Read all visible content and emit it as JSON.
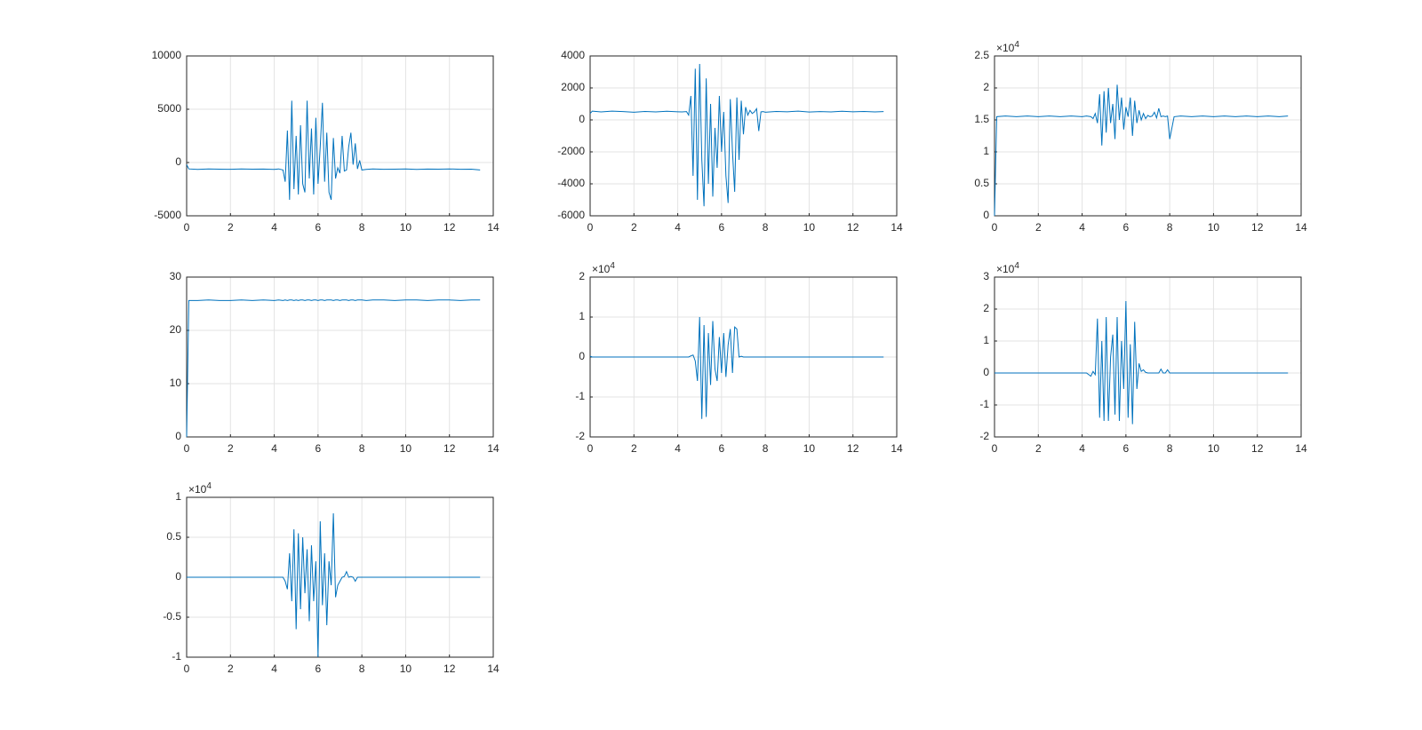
{
  "chart_data": [
    {
      "type": "line",
      "color": "#0072bd",
      "grid": true,
      "x": [
        0,
        0.1,
        0.5,
        1,
        1.5,
        2,
        2.5,
        3,
        3.5,
        4,
        4.2,
        4.4,
        4.5,
        4.6,
        4.7,
        4.8,
        4.9,
        5,
        5.1,
        5.2,
        5.3,
        5.4,
        5.5,
        5.6,
        5.7,
        5.8,
        5.9,
        6,
        6.1,
        6.2,
        6.3,
        6.4,
        6.5,
        6.6,
        6.7,
        6.8,
        6.9,
        7,
        7.1,
        7.2,
        7.3,
        7.4,
        7.5,
        7.6,
        7.7,
        7.8,
        7.9,
        8,
        8.2,
        8.5,
        9,
        9.5,
        10,
        10.5,
        11,
        11.5,
        12,
        12.5,
        13,
        13.4
      ],
      "values": [
        -200,
        -600,
        -650,
        -600,
        -620,
        -640,
        -600,
        -630,
        -610,
        -650,
        -600,
        -700,
        -1800,
        3000,
        -3500,
        5800,
        -2500,
        2500,
        -3000,
        3500,
        -2000,
        -2800,
        5800,
        -1500,
        3200,
        -3000,
        4200,
        -2000,
        1500,
        5600,
        -1800,
        2800,
        -2800,
        -3500,
        2300,
        -1500,
        -500,
        -1000,
        2500,
        -800,
        -700,
        1500,
        2800,
        -200,
        1800,
        -600,
        200,
        -700,
        -650,
        -600,
        -640,
        -620,
        -600,
        -650,
        -610,
        -630,
        -600,
        -640,
        -620,
        -700
      ],
      "xlim": [
        0,
        14
      ],
      "xticks": [
        0,
        2,
        4,
        6,
        8,
        10,
        12,
        14
      ],
      "ylim": [
        -5000,
        10000
      ],
      "yticks": [
        -5000,
        0,
        5000,
        10000
      ]
    },
    {
      "type": "line",
      "color": "#0072bd",
      "grid": true,
      "x": [
        0,
        0.1,
        0.5,
        1,
        1.5,
        2,
        2.5,
        3,
        3.5,
        4,
        4.2,
        4.4,
        4.5,
        4.6,
        4.7,
        4.8,
        4.9,
        5,
        5.1,
        5.2,
        5.3,
        5.4,
        5.5,
        5.6,
        5.7,
        5.8,
        5.9,
        6,
        6.1,
        6.2,
        6.3,
        6.4,
        6.5,
        6.6,
        6.7,
        6.8,
        6.9,
        7,
        7.1,
        7.2,
        7.3,
        7.4,
        7.5,
        7.6,
        7.7,
        7.8,
        7.9,
        8,
        8.2,
        8.5,
        9,
        9.5,
        10,
        10.5,
        11,
        11.5,
        12,
        12.5,
        13,
        13.4
      ],
      "values": [
        400,
        550,
        500,
        550,
        520,
        480,
        530,
        500,
        540,
        510,
        500,
        520,
        300,
        1500,
        -3500,
        3200,
        -5000,
        3500,
        -2500,
        -5400,
        2600,
        -4000,
        1000,
        -4800,
        -500,
        -3000,
        1500,
        -2000,
        500,
        -3500,
        -5200,
        1300,
        -2000,
        -4500,
        1400,
        -2500,
        1200,
        -900,
        800,
        300,
        600,
        400,
        500,
        700,
        -700,
        500,
        520,
        480,
        500,
        530,
        510,
        550,
        490,
        520,
        500,
        540,
        510,
        530,
        500,
        520
      ],
      "xlim": [
        0,
        14
      ],
      "xticks": [
        0,
        2,
        4,
        6,
        8,
        10,
        12,
        14
      ],
      "ylim": [
        -6000,
        4000
      ],
      "yticks": [
        -6000,
        -4000,
        -2000,
        0,
        2000,
        4000
      ]
    },
    {
      "type": "line",
      "color": "#0072bd",
      "grid": true,
      "y_multiplier": {
        "base": "×10",
        "power": "4"
      },
      "x": [
        0,
        0.1,
        0.5,
        1,
        1.5,
        2,
        2.5,
        3,
        3.5,
        4,
        4.2,
        4.4,
        4.5,
        4.6,
        4.7,
        4.8,
        4.9,
        5,
        5.1,
        5.2,
        5.3,
        5.4,
        5.5,
        5.6,
        5.7,
        5.8,
        5.9,
        6,
        6.1,
        6.2,
        6.3,
        6.4,
        6.5,
        6.6,
        6.7,
        6.8,
        6.9,
        7,
        7.1,
        7.2,
        7.3,
        7.4,
        7.5,
        7.6,
        7.7,
        7.8,
        7.9,
        8,
        8.2,
        8.5,
        9,
        9.5,
        10,
        10.5,
        11,
        11.5,
        12,
        12.5,
        13,
        13.4
      ],
      "values": [
        0,
        1.55,
        1.56,
        1.55,
        1.56,
        1.55,
        1.56,
        1.55,
        1.56,
        1.55,
        1.56,
        1.55,
        1.52,
        1.6,
        1.45,
        1.9,
        1.1,
        1.95,
        1.3,
        2.0,
        1.45,
        1.75,
        1.2,
        2.05,
        1.5,
        1.85,
        1.35,
        1.7,
        1.55,
        1.85,
        1.25,
        1.8,
        1.45,
        1.65,
        1.5,
        1.6,
        1.52,
        1.57,
        1.55,
        1.56,
        1.62,
        1.53,
        1.68,
        1.55,
        1.56,
        1.55,
        1.56,
        1.2,
        1.55,
        1.56,
        1.55,
        1.56,
        1.55,
        1.56,
        1.55,
        1.56,
        1.55,
        1.56,
        1.55,
        1.56
      ],
      "xlim": [
        0,
        14
      ],
      "xticks": [
        0,
        2,
        4,
        6,
        8,
        10,
        12,
        14
      ],
      "ylim": [
        0,
        2.5
      ],
      "yticks": [
        0,
        0.5,
        1,
        1.5,
        2,
        2.5
      ]
    },
    {
      "type": "line",
      "color": "#0072bd",
      "grid": true,
      "x": [
        0,
        0.1,
        0.5,
        1,
        1.5,
        2,
        2.5,
        3,
        3.5,
        4,
        4.2,
        4.4,
        4.5,
        4.6,
        4.7,
        4.8,
        4.9,
        5,
        5.1,
        5.2,
        5.3,
        5.4,
        5.5,
        5.6,
        5.7,
        5.8,
        5.9,
        6,
        6.1,
        6.2,
        6.3,
        6.4,
        6.5,
        6.6,
        6.7,
        6.8,
        6.9,
        7,
        7.1,
        7.2,
        7.3,
        7.4,
        7.5,
        7.6,
        7.7,
        7.8,
        7.9,
        8,
        8.2,
        8.5,
        9,
        9.5,
        10,
        10.5,
        11,
        11.5,
        12,
        12.5,
        13,
        13.4
      ],
      "values": [
        0,
        25.6,
        25.6,
        25.7,
        25.6,
        25.6,
        25.7,
        25.6,
        25.7,
        25.6,
        25.7,
        25.6,
        25.7,
        25.6,
        25.7,
        25.7,
        25.6,
        25.7,
        25.6,
        25.7,
        25.7,
        25.6,
        25.7,
        25.7,
        25.6,
        25.7,
        25.7,
        25.6,
        25.7,
        25.7,
        25.6,
        25.7,
        25.7,
        25.7,
        25.6,
        25.7,
        25.7,
        25.6,
        25.7,
        25.7,
        25.7,
        25.6,
        25.7,
        25.7,
        25.6,
        25.7,
        25.7,
        25.7,
        25.6,
        25.7,
        25.7,
        25.6,
        25.7,
        25.7,
        25.6,
        25.7,
        25.7,
        25.6,
        25.7,
        25.7
      ],
      "xlim": [
        0,
        14
      ],
      "xticks": [
        0,
        2,
        4,
        6,
        8,
        10,
        12,
        14
      ],
      "ylim": [
        0,
        30
      ],
      "yticks": [
        0,
        10,
        20,
        30
      ]
    },
    {
      "type": "line",
      "color": "#0072bd",
      "grid": true,
      "y_multiplier": {
        "base": "×10",
        "power": "4"
      },
      "x": [
        0,
        0.1,
        0.5,
        1,
        1.5,
        2,
        2.5,
        3,
        3.5,
        4,
        4.2,
        4.4,
        4.5,
        4.6,
        4.7,
        4.8,
        4.9,
        5,
        5.1,
        5.2,
        5.3,
        5.4,
        5.5,
        5.6,
        5.7,
        5.8,
        5.9,
        6,
        6.1,
        6.2,
        6.3,
        6.4,
        6.5,
        6.6,
        6.7,
        6.8,
        6.9,
        7,
        7.1,
        7.2,
        7.3,
        7.4,
        7.5,
        7.6,
        7.7,
        7.8,
        7.9,
        8,
        8.2,
        8.5,
        9,
        9.5,
        10,
        10.5,
        11,
        11.5,
        12,
        12.5,
        13,
        13.4
      ],
      "values": [
        0.02,
        0,
        0,
        0,
        0,
        0,
        0,
        0,
        0,
        0,
        0,
        0,
        0,
        0.03,
        0.05,
        -0.1,
        -0.6,
        1.0,
        -1.55,
        0.8,
        -1.5,
        0.6,
        -0.7,
        0.9,
        -0.3,
        -0.6,
        0.5,
        -0.4,
        0.6,
        -0.5,
        0.3,
        0.7,
        -0.4,
        0.75,
        0.7,
        0,
        0.02,
        0,
        0,
        0,
        0,
        0,
        0,
        0,
        0,
        0,
        0,
        0,
        0,
        0,
        0,
        0,
        0,
        0,
        0,
        0,
        0,
        0,
        0,
        0
      ],
      "xlim": [
        0,
        14
      ],
      "xticks": [
        0,
        2,
        4,
        6,
        8,
        10,
        12,
        14
      ],
      "ylim": [
        -2,
        2
      ],
      "yticks": [
        -2,
        -1,
        0,
        1,
        2
      ]
    },
    {
      "type": "line",
      "color": "#0072bd",
      "grid": true,
      "y_multiplier": {
        "base": "×10",
        "power": "4"
      },
      "x": [
        0,
        0.1,
        0.5,
        1,
        1.5,
        2,
        2.5,
        3,
        3.5,
        4,
        4.2,
        4.4,
        4.5,
        4.6,
        4.7,
        4.8,
        4.9,
        5,
        5.1,
        5.2,
        5.3,
        5.4,
        5.5,
        5.6,
        5.7,
        5.8,
        5.9,
        6,
        6.1,
        6.2,
        6.3,
        6.4,
        6.5,
        6.6,
        6.7,
        6.8,
        6.9,
        7,
        7.1,
        7.2,
        7.3,
        7.4,
        7.5,
        7.6,
        7.7,
        7.8,
        7.9,
        8,
        8.2,
        8.5,
        9,
        9.5,
        10,
        10.5,
        11,
        11.5,
        12,
        12.5,
        13,
        13.4
      ],
      "values": [
        0,
        0,
        0,
        0,
        0,
        0,
        0,
        0,
        0,
        0,
        0,
        -0.1,
        0.05,
        -0.05,
        1.7,
        -1.4,
        1.0,
        -1.5,
        1.75,
        -1.5,
        0.5,
        1.2,
        -1.3,
        1.75,
        -1.5,
        1.0,
        -0.5,
        2.25,
        -1.4,
        0.9,
        -1.6,
        1.6,
        -0.5,
        0.3,
        0.05,
        0.1,
        0.02,
        0,
        0,
        0,
        0,
        0,
        0,
        0.12,
        0,
        0,
        0.1,
        0,
        0,
        0,
        0,
        0,
        0,
        0,
        0,
        0,
        0,
        0,
        0,
        0
      ],
      "xlim": [
        0,
        14
      ],
      "xticks": [
        0,
        2,
        4,
        6,
        8,
        10,
        12,
        14
      ],
      "ylim": [
        -2,
        3
      ],
      "yticks": [
        -2,
        -1,
        0,
        1,
        2,
        3
      ]
    },
    {
      "type": "line",
      "color": "#0072bd",
      "grid": true,
      "y_multiplier": {
        "base": "×10",
        "power": "4"
      },
      "x": [
        0,
        0.1,
        0.5,
        1,
        1.5,
        2,
        2.5,
        3,
        3.5,
        4,
        4.2,
        4.4,
        4.5,
        4.6,
        4.7,
        4.8,
        4.9,
        5,
        5.1,
        5.2,
        5.3,
        5.4,
        5.5,
        5.6,
        5.7,
        5.8,
        5.9,
        6,
        6.1,
        6.2,
        6.3,
        6.4,
        6.5,
        6.6,
        6.7,
        6.8,
        6.9,
        7,
        7.1,
        7.2,
        7.3,
        7.4,
        7.5,
        7.6,
        7.7,
        7.8,
        7.9,
        8,
        8.2,
        8.5,
        9,
        9.5,
        10,
        10.5,
        11,
        11.5,
        12,
        12.5,
        13,
        13.4
      ],
      "values": [
        0,
        0,
        0,
        0,
        0,
        0,
        0,
        0,
        0,
        0,
        0,
        0,
        -0.05,
        -0.15,
        0.3,
        -0.3,
        0.6,
        -0.65,
        0.55,
        -0.4,
        0.5,
        -0.2,
        0.35,
        -0.55,
        0.4,
        -0.3,
        0.2,
        -1.0,
        0.7,
        -0.35,
        0.3,
        -0.6,
        0.2,
        -0.1,
        0.8,
        -0.25,
        -0.1,
        -0.05,
        0,
        0.01,
        0.07,
        0,
        0.01,
        0,
        -0.05,
        0,
        0,
        0,
        0,
        0,
        0,
        0,
        0,
        0,
        0,
        0,
        0,
        0,
        0,
        0
      ],
      "xlim": [
        0,
        14
      ],
      "xticks": [
        0,
        2,
        4,
        6,
        8,
        10,
        12,
        14
      ],
      "ylim": [
        -1,
        1
      ],
      "yticks": [
        -1,
        -0.5,
        0,
        0.5,
        1
      ]
    }
  ]
}
